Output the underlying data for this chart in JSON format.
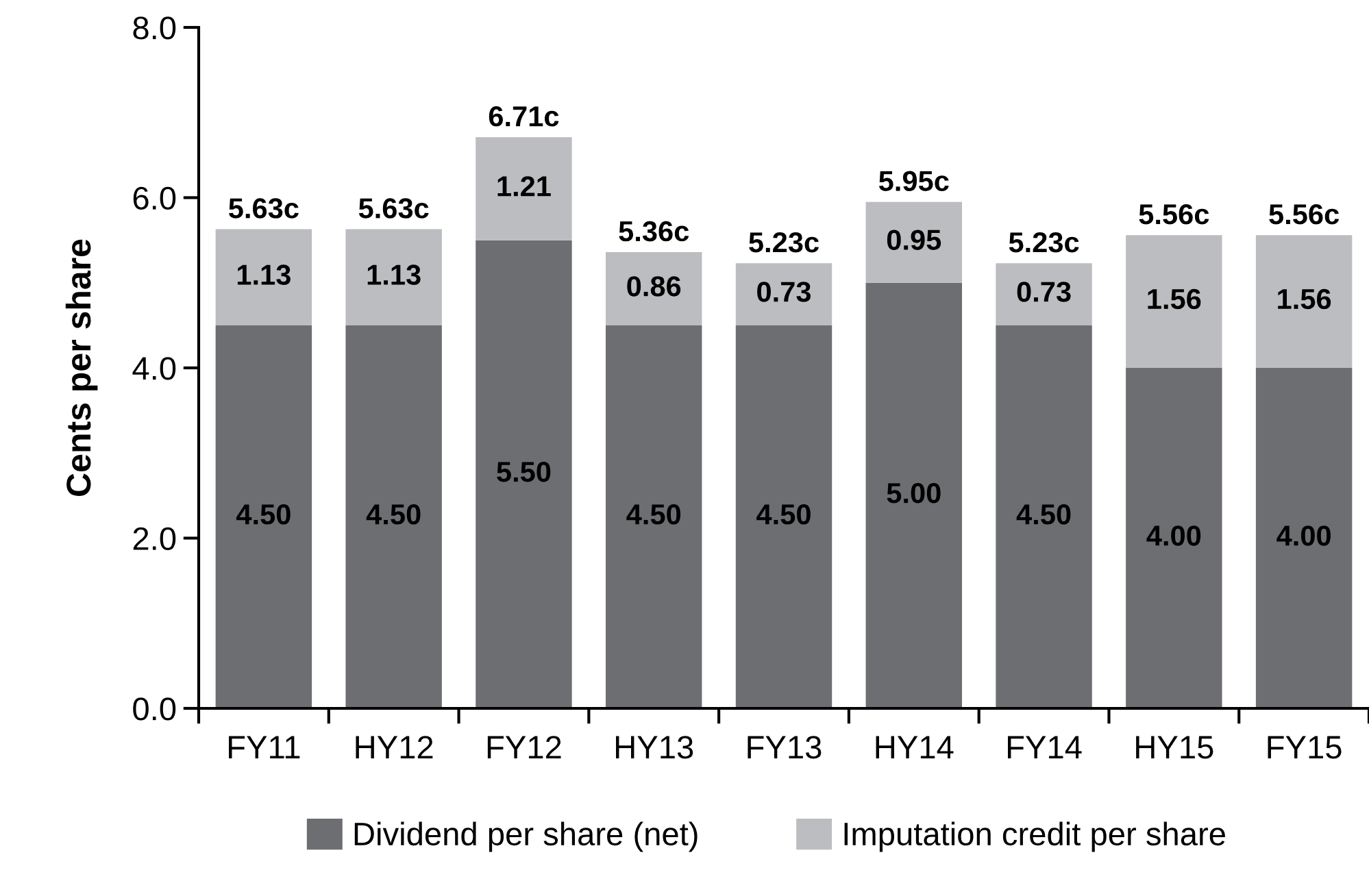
{
  "chart_data": {
    "type": "bar",
    "stacked": true,
    "ylabel": "Cents per share",
    "categories": [
      "FY11",
      "HY12",
      "FY12",
      "HY13",
      "FY13",
      "HY14",
      "FY14",
      "HY15",
      "FY15"
    ],
    "series": [
      {
        "name": "Dividend per share (net)",
        "color": "#6d6e71",
        "values": [
          4.5,
          4.5,
          5.5,
          4.5,
          4.5,
          5.0,
          4.5,
          4.0,
          4.0
        ],
        "value_labels": [
          "4.50",
          "4.50",
          "5.50",
          "4.50",
          "4.50",
          "5.00",
          "4.50",
          "4.00",
          "4.00"
        ]
      },
      {
        "name": "Imputation credit per share",
        "color": "#bcbdc0",
        "values": [
          1.13,
          1.13,
          1.21,
          0.86,
          0.73,
          0.95,
          0.73,
          1.56,
          1.56
        ],
        "value_labels": [
          "1.13",
          "1.13",
          "1.21",
          "0.86",
          "0.73",
          "0.95",
          "0.73",
          "1.56",
          "1.56"
        ]
      }
    ],
    "totals": [
      "5.63c",
      "5.63c",
      "6.71c",
      "5.36c",
      "5.23c",
      "5.95c",
      "5.23c",
      "5.56c",
      "5.56c"
    ],
    "ylim": [
      0,
      8
    ],
    "yticks": [
      {
        "value": 0,
        "label": "0.0"
      },
      {
        "value": 2,
        "label": "2.0"
      },
      {
        "value": 4,
        "label": "4.0"
      },
      {
        "value": 6,
        "label": "6.0"
      },
      {
        "value": 8,
        "label": "8.0"
      }
    ],
    "grid": false,
    "legend": "bottom"
  }
}
